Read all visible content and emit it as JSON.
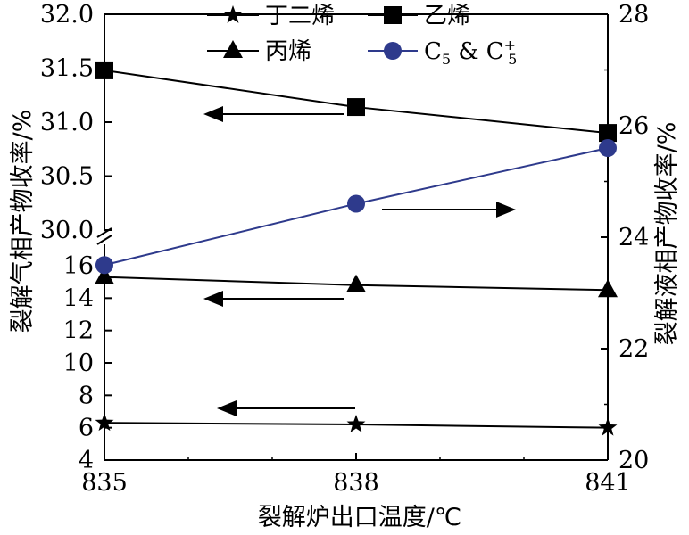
{
  "chart_data": {
    "type": "line",
    "xlabel": "裂解炉出口温度/℃",
    "ylabel_left": "裂解气相产物收率/%",
    "ylabel_right": "裂解液相产物收率/%",
    "x": [
      835,
      838,
      841
    ],
    "x_ticks": [
      "835",
      "838",
      "841"
    ],
    "left_axis": {
      "broken": true,
      "lower_range": [
        4,
        16
      ],
      "upper_range": [
        30.0,
        32.0
      ],
      "lower_ticks": [
        "4",
        "6",
        "8",
        "10",
        "12",
        "14",
        "16"
      ],
      "upper_ticks": [
        "30.0",
        "30.5",
        "31.0",
        "31.5",
        "32.0"
      ]
    },
    "right_axis": {
      "range": [
        20,
        28
      ],
      "ticks": [
        "20",
        "22",
        "24",
        "26",
        "28"
      ]
    },
    "series": [
      {
        "name": "丁二烯",
        "axis": "left",
        "marker": "star",
        "color": "#000000",
        "values": [
          6.3,
          6.2,
          6.0
        ]
      },
      {
        "name": "乙烯",
        "axis": "left",
        "marker": "square",
        "color": "#000000",
        "values": [
          31.48,
          31.14,
          30.9
        ]
      },
      {
        "name": "丙烯",
        "axis": "left",
        "marker": "triangle",
        "color": "#000000",
        "values": [
          15.3,
          14.8,
          14.5
        ]
      },
      {
        "name": "C5 & C5+",
        "axis": "right",
        "marker": "circle",
        "color": "#2e3a8c",
        "values": [
          23.5,
          24.6,
          25.6
        ]
      }
    ],
    "annotations": [
      {
        "type": "arrow",
        "direction": "left",
        "target_axis": "left",
        "near_series": "乙烯"
      },
      {
        "type": "arrow",
        "direction": "right",
        "target_axis": "right",
        "near_series": "C5 & C5+"
      },
      {
        "type": "arrow",
        "direction": "left",
        "target_axis": "left",
        "near_series": "丙烯"
      },
      {
        "type": "arrow",
        "direction": "left",
        "target_axis": "left",
        "near_series": "丁二烯"
      }
    ],
    "legend": {
      "placement": "top",
      "labels": [
        "丁二烯",
        "乙烯",
        "丙烯"
      ],
      "c5_main": "C",
      "c5_sub": "5",
      "c5_amp": " & C",
      "c5_sup": "+"
    }
  }
}
